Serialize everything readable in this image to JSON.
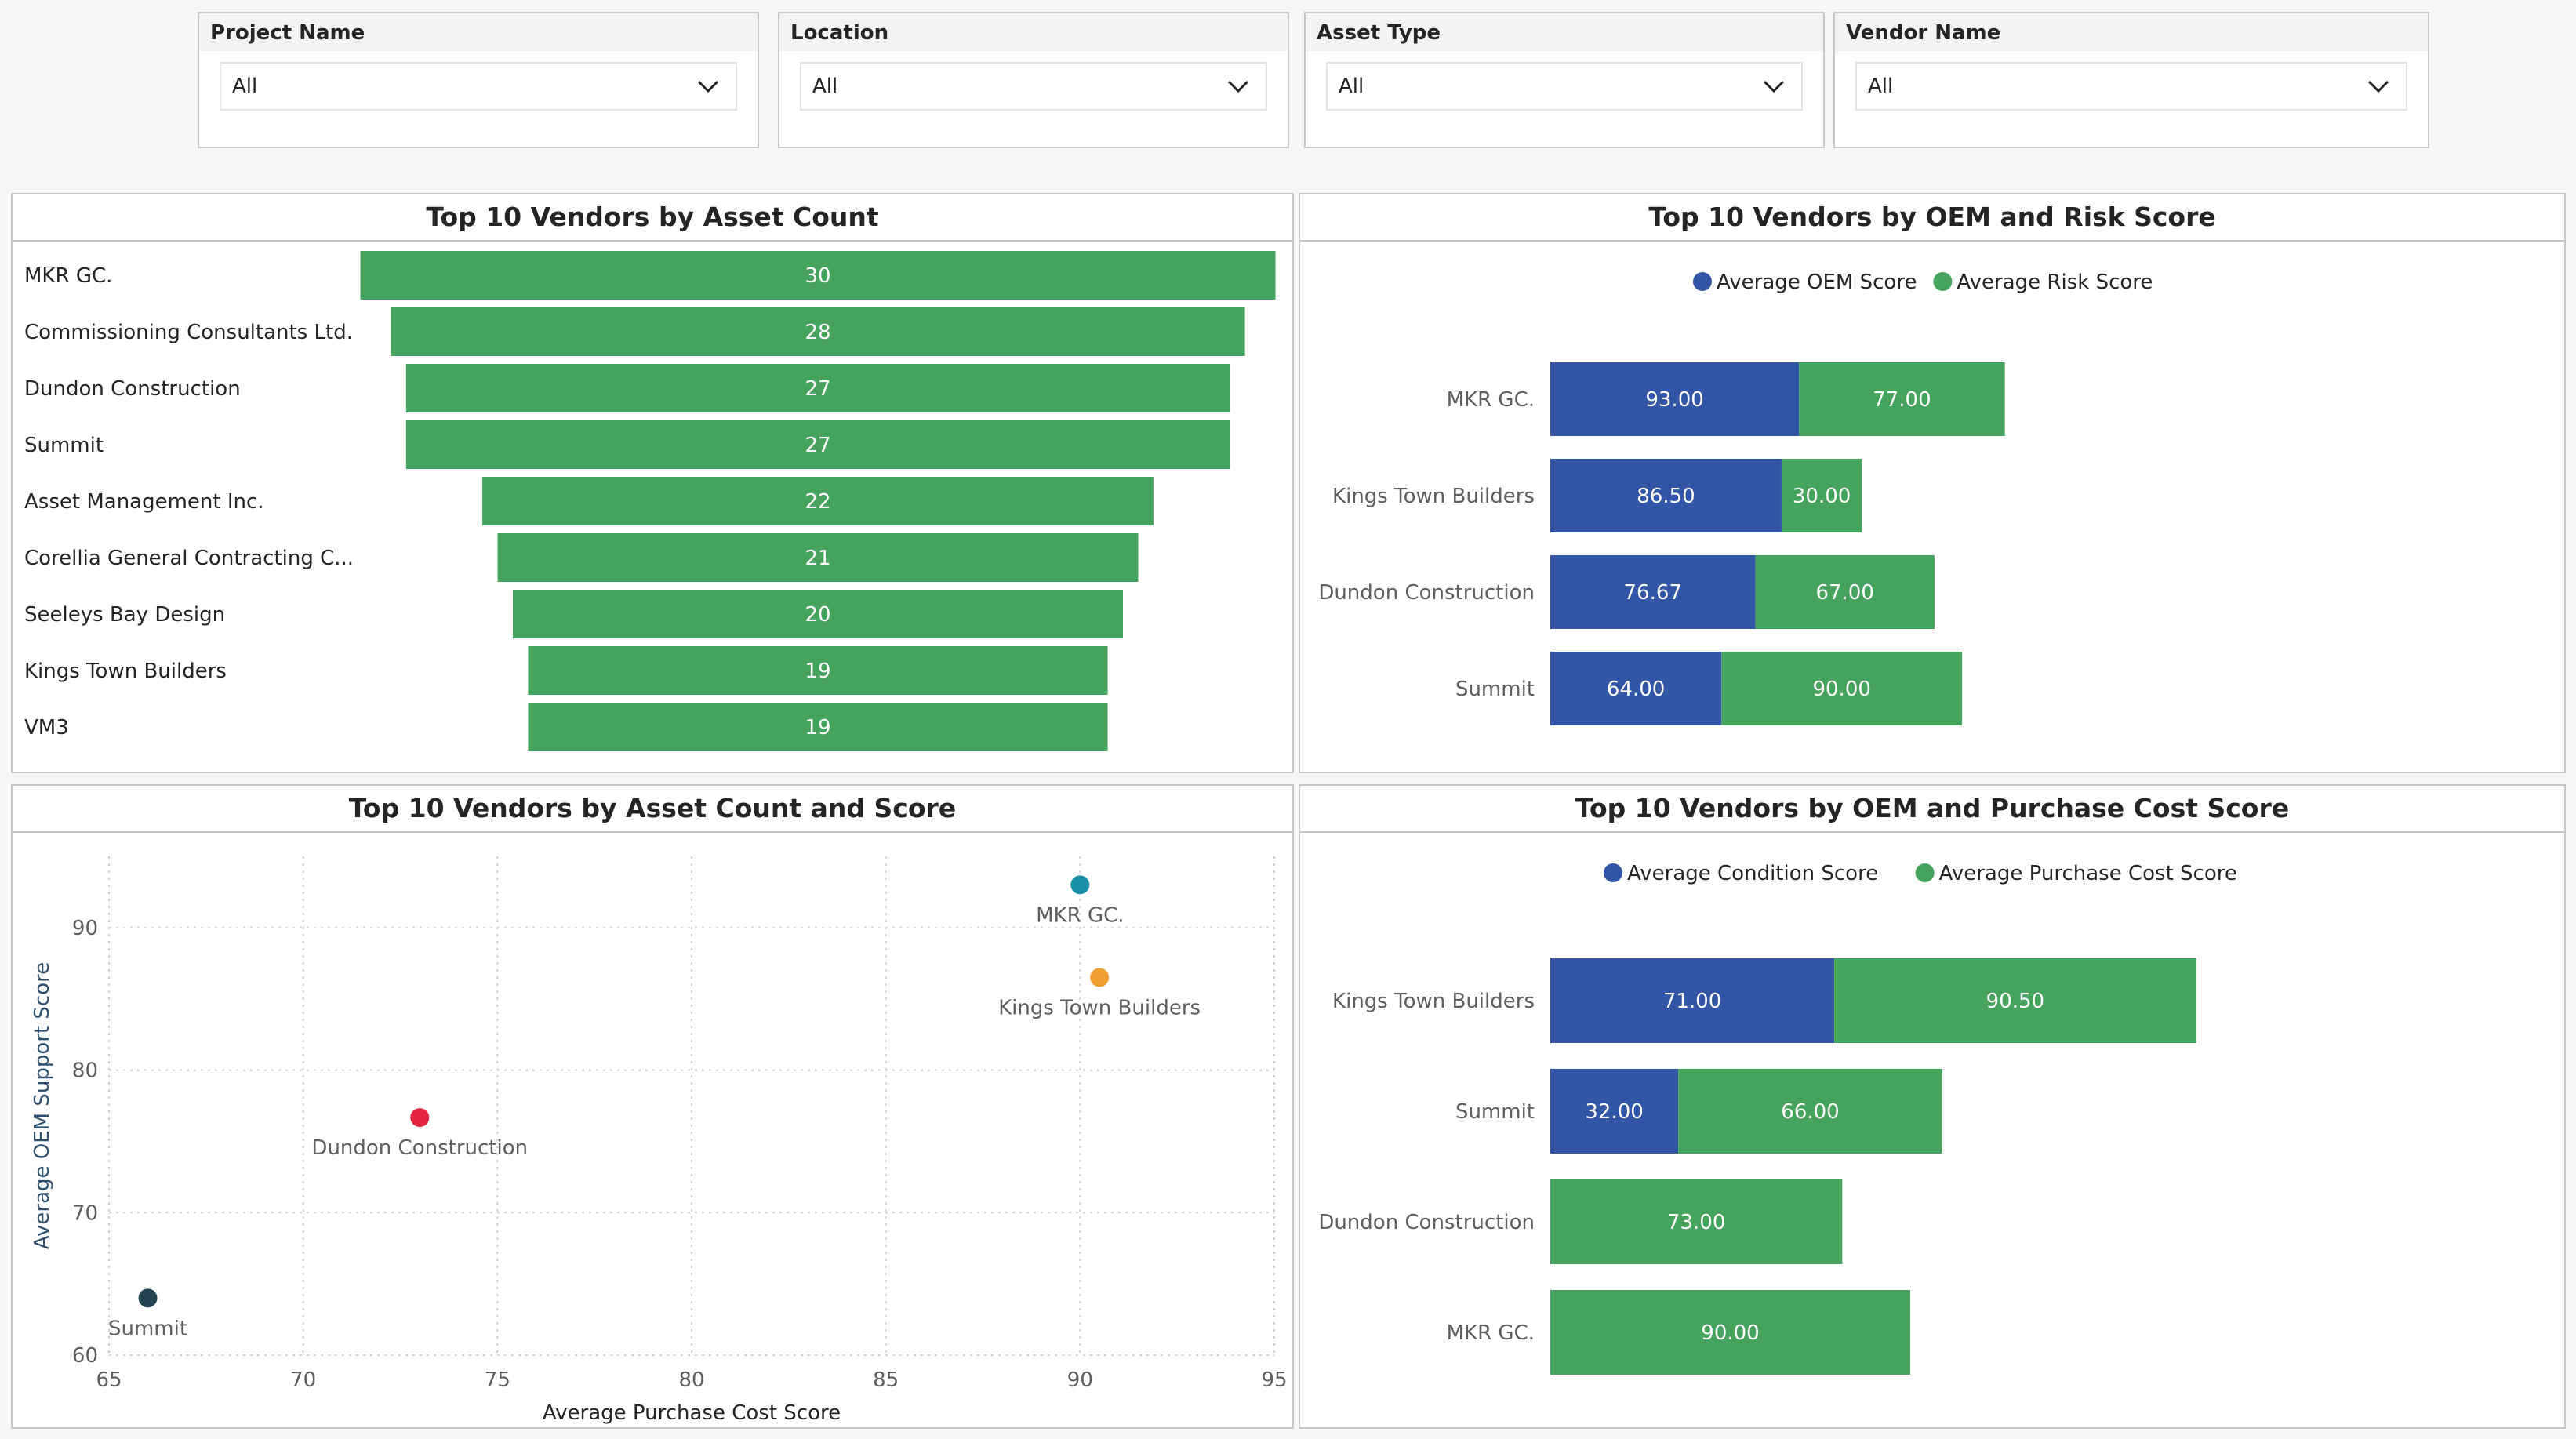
{
  "filters": [
    {
      "label": "Project Name",
      "value": "All"
    },
    {
      "label": "Location",
      "value": "All"
    },
    {
      "label": "Asset Type",
      "value": "All"
    },
    {
      "label": "Vendor Name",
      "value": "All"
    }
  ],
  "panels": {
    "asset_count": {
      "title": "Top 10 Vendors by Asset Count"
    },
    "oem_risk": {
      "title": "Top 10 Vendors by OEM and Risk Score"
    },
    "count_score": {
      "title": "Top 10 Vendors by Asset Count and Score"
    },
    "oem_purchase": {
      "title": "Top 10 Vendors by OEM and Purchase Cost Score"
    }
  },
  "colors": {
    "green": "#46a35e",
    "blue": "#3355a5"
  },
  "chart_data": [
    {
      "type": "bar",
      "orientation": "horizontal-funnel",
      "title": "Top 10 Vendors by Asset Count",
      "categories": [
        "MKR GC.",
        "Commissioning Consultants Ltd.",
        "Dundon Construction",
        "Summit",
        "Asset Management Inc.",
        "Corellia General Contracting C...",
        "Seeleys Bay Design",
        "Kings Town Builders",
        "VM3"
      ],
      "values": [
        30,
        28,
        27,
        27,
        22,
        21,
        20,
        19,
        19
      ],
      "color": "#46a35e"
    },
    {
      "type": "bar",
      "orientation": "horizontal-stacked",
      "title": "Top 10 Vendors by OEM and Risk Score",
      "legend_position": "top-center",
      "categories": [
        "MKR GC.",
        "Kings Town Builders",
        "Dundon Construction",
        "Summit"
      ],
      "series": [
        {
          "name": "Average OEM Score",
          "color": "#3355a5",
          "values": [
            93.0,
            86.5,
            76.67,
            64.0
          ],
          "labels": [
            "93.00",
            "86.50",
            "76.67",
            "64.00"
          ]
        },
        {
          "name": "Average Risk Score",
          "color": "#46a35e",
          "values": [
            77.0,
            30.0,
            67.0,
            90.0
          ],
          "labels": [
            "77.00",
            "30.00",
            "67.00",
            "90.00"
          ]
        }
      ]
    },
    {
      "type": "scatter",
      "title": "Top 10 Vendors by Asset Count and Score",
      "xlabel": "Average Purchase Cost Score",
      "ylabel": "Average OEM Support Score",
      "xlim": [
        65,
        95
      ],
      "ylim": [
        60,
        95
      ],
      "xticks": [
        65,
        70,
        75,
        80,
        85,
        90,
        95
      ],
      "yticks": [
        60,
        70,
        80,
        90
      ],
      "grid": true,
      "points": [
        {
          "label": "MKR GC.",
          "x": 90.0,
          "y": 93.0,
          "color": "#1a8fa8"
        },
        {
          "label": "Kings Town Builders",
          "x": 90.5,
          "y": 86.5,
          "color": "#f0a030"
        },
        {
          "label": "Dundon Construction",
          "x": 73.0,
          "y": 76.67,
          "color": "#e3233f"
        },
        {
          "label": "Summit",
          "x": 66.0,
          "y": 64.0,
          "color": "#22424f"
        }
      ]
    },
    {
      "type": "bar",
      "orientation": "horizontal-stacked",
      "title": "Top 10 Vendors by OEM and Purchase Cost Score",
      "legend_position": "top-center",
      "categories": [
        "Kings Town Builders",
        "Summit",
        "Dundon Construction",
        "MKR GC."
      ],
      "series": [
        {
          "name": "Average Condition Score",
          "color": "#3355a5",
          "values": [
            71.0,
            32.0,
            null,
            null
          ],
          "labels": [
            "71.00",
            "32.00",
            "",
            ""
          ]
        },
        {
          "name": "Average Purchase Cost Score",
          "color": "#46a35e",
          "values": [
            90.5,
            66.0,
            73.0,
            90.0
          ],
          "labels": [
            "90.50",
            "66.00",
            "73.00",
            "90.00"
          ]
        }
      ]
    }
  ]
}
